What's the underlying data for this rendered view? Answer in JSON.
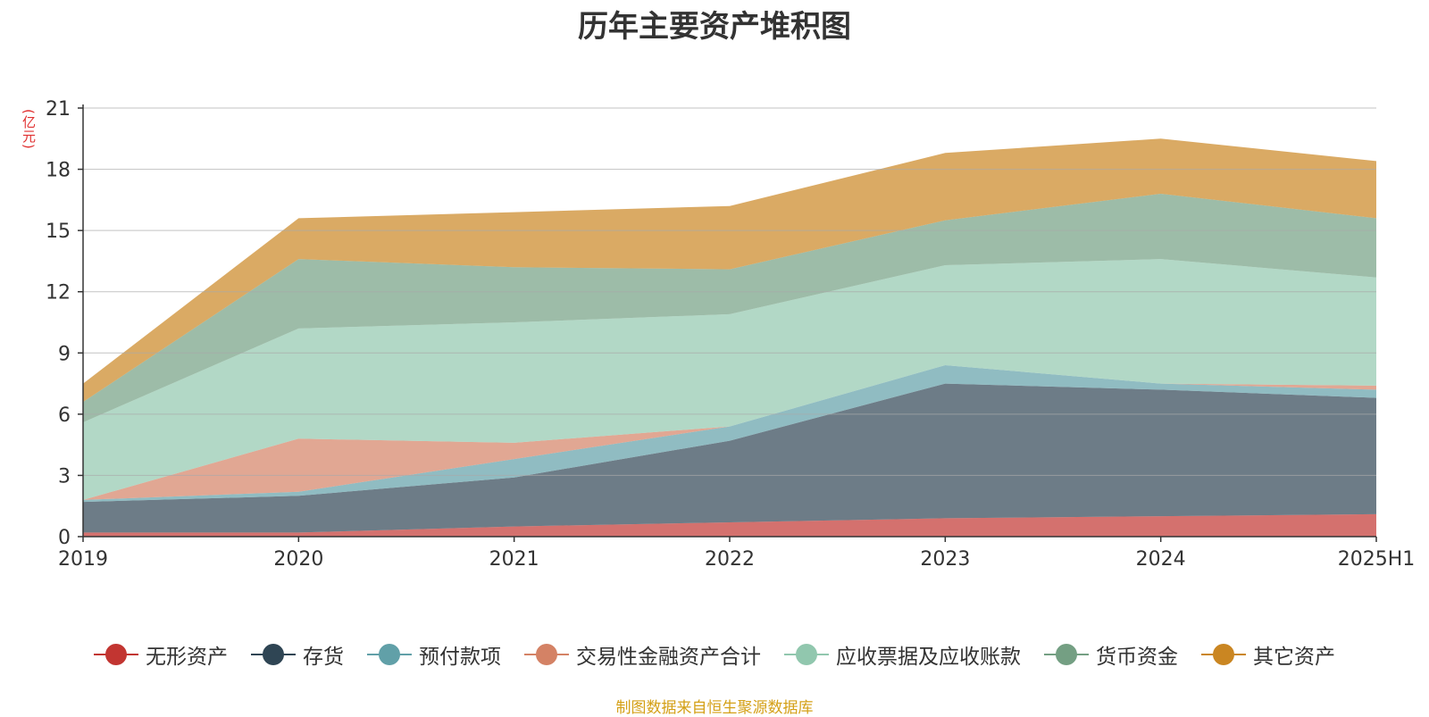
{
  "title": "历年主要资产堆积图",
  "unit_label": "(亿元)",
  "source": "制图数据来自恒生聚源数据库",
  "chart_data": {
    "type": "area",
    "stacked": true,
    "categories": [
      "2019",
      "2020",
      "2021",
      "2022",
      "2023",
      "2024",
      "2025H1"
    ],
    "ylim": [
      0,
      21
    ],
    "yticks": [
      0,
      3,
      6,
      9,
      12,
      15,
      18,
      21
    ],
    "grid": true,
    "legend_position": "bottom",
    "series": [
      {
        "name": "无形资产",
        "color": "#c23531",
        "values": [
          0.2,
          0.2,
          0.5,
          0.7,
          0.9,
          1.0,
          1.1
        ]
      },
      {
        "name": "存货",
        "color": "#2f4554",
        "values": [
          1.5,
          1.8,
          2.4,
          4.0,
          6.6,
          6.2,
          5.7
        ]
      },
      {
        "name": "预付款项",
        "color": "#61a0a8",
        "values": [
          0.1,
          0.2,
          0.9,
          0.7,
          0.9,
          0.3,
          0.4
        ]
      },
      {
        "name": "交易性金融资产合计",
        "color": "#d48265",
        "values": [
          0.0,
          2.6,
          0.8,
          0.0,
          0.0,
          0.0,
          0.2
        ]
      },
      {
        "name": "应收票据及应收账款",
        "color": "#91c7ae",
        "values": [
          3.8,
          5.4,
          5.9,
          5.5,
          4.9,
          6.1,
          5.3
        ]
      },
      {
        "name": "货币资金",
        "color": "#749f83",
        "values": [
          1.0,
          3.4,
          2.7,
          2.2,
          2.2,
          3.2,
          2.9
        ]
      },
      {
        "name": "其它资产",
        "color": "#ca8622",
        "values": [
          0.9,
          2.0,
          2.7,
          3.1,
          3.3,
          2.7,
          2.8
        ]
      }
    ]
  }
}
